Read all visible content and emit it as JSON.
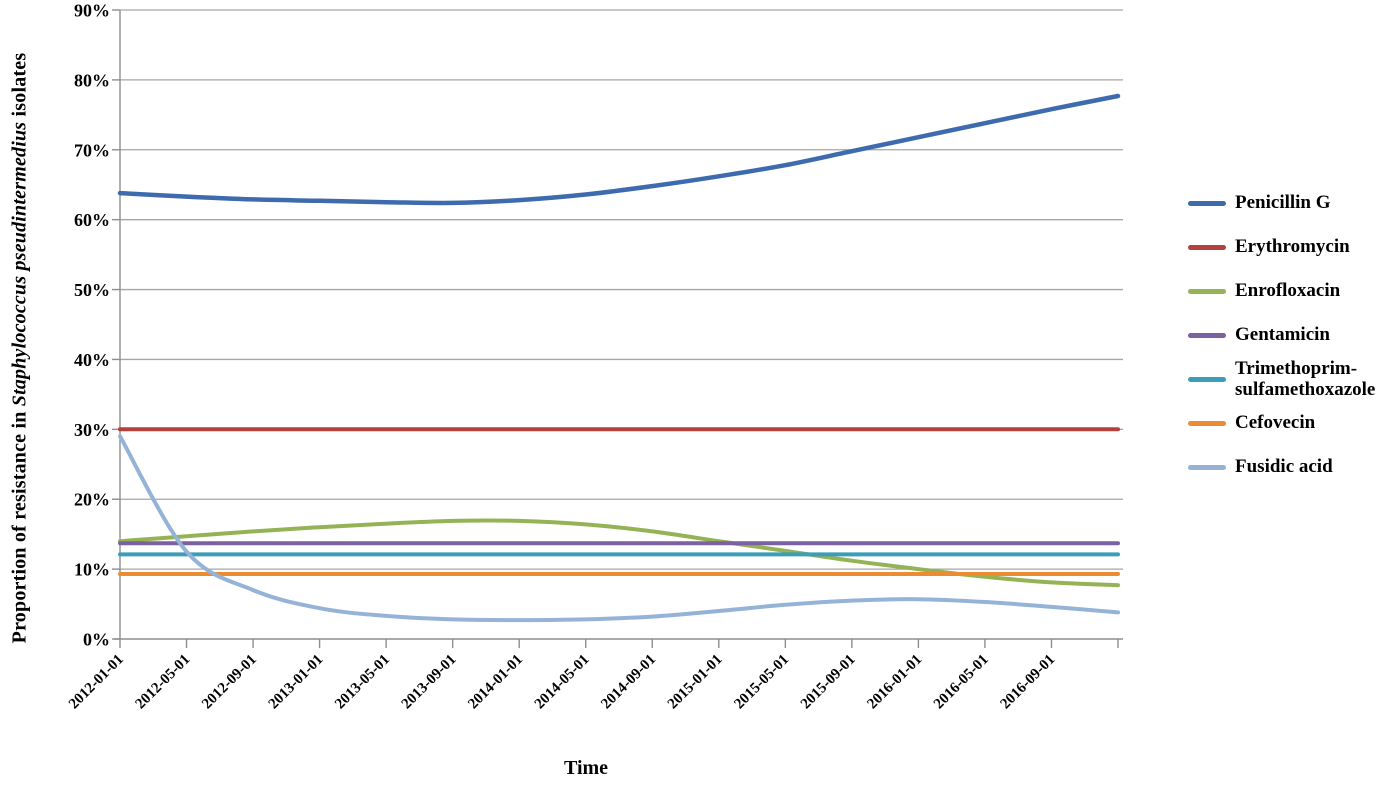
{
  "figure": {
    "x_axis_title": "Time",
    "y_axis_title_prefix": "Proportion of resistance in ",
    "y_axis_title_italic": "Staphylococcus pseudintermedius",
    "y_axis_title_suffix": " isolates"
  },
  "chart_data": {
    "type": "line",
    "title": "",
    "xlabel": "Time",
    "ylabel": "Proportion of resistance in Staphylococcus pseudintermedius isolates",
    "ylim": [
      0,
      90
    ],
    "ytick_step": 10,
    "ytick_labels": [
      "0%",
      "10%",
      "20%",
      "30%",
      "40%",
      "50%",
      "60%",
      "70%",
      "80%",
      "90%"
    ],
    "grid": true,
    "legend_position": "right",
    "x_unit": "months since 2012-01-01",
    "xtick_months": [
      0,
      4,
      8,
      12,
      16,
      20,
      24,
      28,
      32,
      36,
      40,
      44,
      48,
      52,
      56
    ],
    "xtick_labels": [
      "2012-01-01",
      "2012-05-01",
      "2012-09-01",
      "2013-01-01",
      "2013-05-01",
      "2013-09-01",
      "2014-01-01",
      "2014-05-01",
      "2014-09-01",
      "2015-01-01",
      "2015-05-01",
      "2015-09-01",
      "2016-01-01",
      "2016-05-01",
      "2016-09-01"
    ],
    "axis_end_month": 60,
    "sample_months": [
      0,
      4,
      8,
      12,
      16,
      20,
      24,
      28,
      32,
      36,
      40,
      44,
      48,
      52,
      56,
      60
    ],
    "grid_color": "#a6a6a6",
    "axis_color": "#8e8e8e",
    "series": [
      {
        "name": "Penicillin G",
        "color": "#3e6bae",
        "stroke_width": 4.5,
        "values": [
          63.8,
          63.3,
          62.9,
          62.7,
          62.5,
          62.4,
          62.8,
          63.6,
          64.8,
          66.2,
          67.8,
          69.8,
          71.8,
          73.8,
          75.8,
          77.7
        ]
      },
      {
        "name": "Erythromycin",
        "color": "#b2423e",
        "stroke_width": 4,
        "values": [
          30,
          30,
          30,
          30,
          30,
          30,
          30,
          30,
          30,
          30,
          30,
          30,
          30,
          30,
          30,
          30
        ]
      },
      {
        "name": "Enrofloxacin",
        "color": "#94b355",
        "stroke_width": 4,
        "values": [
          14.0,
          14.7,
          15.4,
          16.0,
          16.5,
          16.9,
          16.9,
          16.4,
          15.4,
          14.0,
          12.6,
          11.2,
          10.0,
          8.9,
          8.1,
          7.7
        ]
      },
      {
        "name": "Gentamicin",
        "color": "#7c61a1",
        "stroke_width": 4,
        "values": [
          13.7,
          13.7,
          13.7,
          13.7,
          13.7,
          13.7,
          13.7,
          13.7,
          13.7,
          13.7,
          13.7,
          13.7,
          13.7,
          13.7,
          13.7,
          13.7
        ]
      },
      {
        "name": "Trimethoprim-sulfamethoxazole",
        "color": "#3c9db9",
        "stroke_width": 4,
        "values": [
          12.1,
          12.1,
          12.1,
          12.1,
          12.1,
          12.1,
          12.1,
          12.1,
          12.1,
          12.1,
          12.1,
          12.1,
          12.1,
          12.1,
          12.1,
          12.1
        ]
      },
      {
        "name": "Cefovecin",
        "color": "#eb8c33",
        "stroke_width": 4,
        "values": [
          9.3,
          9.3,
          9.3,
          9.3,
          9.3,
          9.3,
          9.3,
          9.3,
          9.3,
          9.3,
          9.3,
          9.3,
          9.3,
          9.3,
          9.3,
          9.3
        ]
      },
      {
        "name": "Fusidic acid",
        "color": "#95b3d7",
        "stroke_width": 4,
        "values": [
          29.0,
          12.5,
          7.0,
          4.4,
          3.3,
          2.8,
          2.7,
          2.8,
          3.2,
          4.0,
          4.9,
          5.5,
          5.7,
          5.3,
          4.6,
          3.8
        ]
      }
    ]
  }
}
